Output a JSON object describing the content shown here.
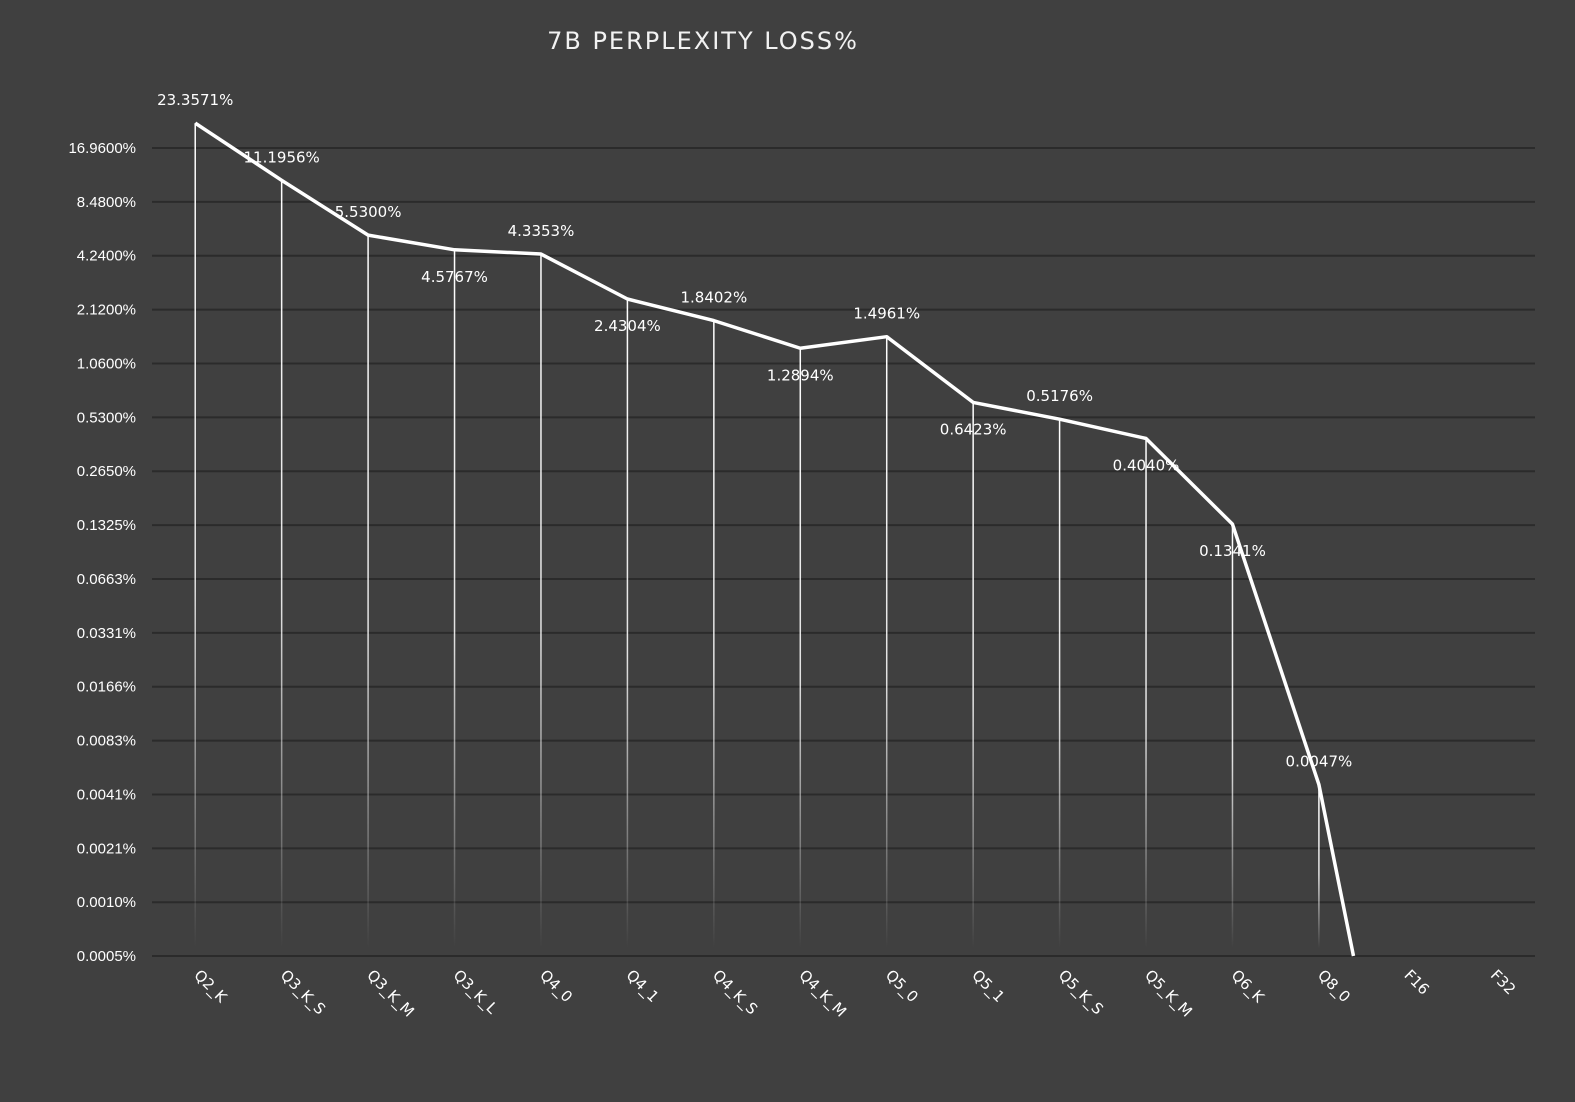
{
  "chart_data": {
    "type": "line",
    "title": "7B PERPLEXITY LOSS%",
    "xlabel": "",
    "ylabel": "",
    "yscale": "log2",
    "grid": true,
    "drop_lines": true,
    "y_ticks": [
      "0.0005%",
      "0.0010%",
      "0.0021%",
      "0.0041%",
      "0.0083%",
      "0.0166%",
      "0.0331%",
      "0.0663%",
      "0.1325%",
      "0.2650%",
      "0.5300%",
      "1.0600%",
      "2.1200%",
      "4.2400%",
      "8.4800%",
      "16.9600%"
    ],
    "y_tick_values": [
      0.000518,
      0.001035,
      0.00207,
      0.00414,
      0.00828,
      0.016563,
      0.033125,
      0.06625,
      0.1325,
      0.265,
      0.53,
      1.06,
      2.12,
      4.24,
      8.48,
      16.96
    ],
    "categories": [
      "Q2_K",
      "Q3_K_S",
      "Q3_K_M",
      "Q3_K_L",
      "Q4_0",
      "Q4_1",
      "Q4_K_S",
      "Q4_K_M",
      "Q5_0",
      "Q5_1",
      "Q5_K_S",
      "Q5_K_M",
      "Q6_K",
      "Q8_0",
      "F16",
      "F32"
    ],
    "series": [
      {
        "name": "7B Perplexity Loss%",
        "color": "#ffffff",
        "values": [
          23.3571,
          11.1956,
          5.53,
          4.5767,
          4.3353,
          2.4304,
          1.8402,
          1.2894,
          1.4961,
          0.6423,
          0.5176,
          0.404,
          0.1341,
          0.0047,
          0,
          0
        ],
        "labels": [
          "23.3571%",
          "11.1956%",
          "5.5300%",
          "4.5767%",
          "4.3353%",
          "2.4304%",
          "1.8402%",
          "1.2894%",
          "1.4961%",
          "0.6423%",
          "0.5176%",
          "0.4040%",
          "0.1341%",
          "0.0047%",
          "",
          ""
        ],
        "label_position": [
          "above",
          "above",
          "above",
          "below",
          "above",
          "below",
          "above",
          "below",
          "above",
          "below",
          "above",
          "below",
          "below",
          "above",
          "",
          ""
        ]
      }
    ]
  }
}
